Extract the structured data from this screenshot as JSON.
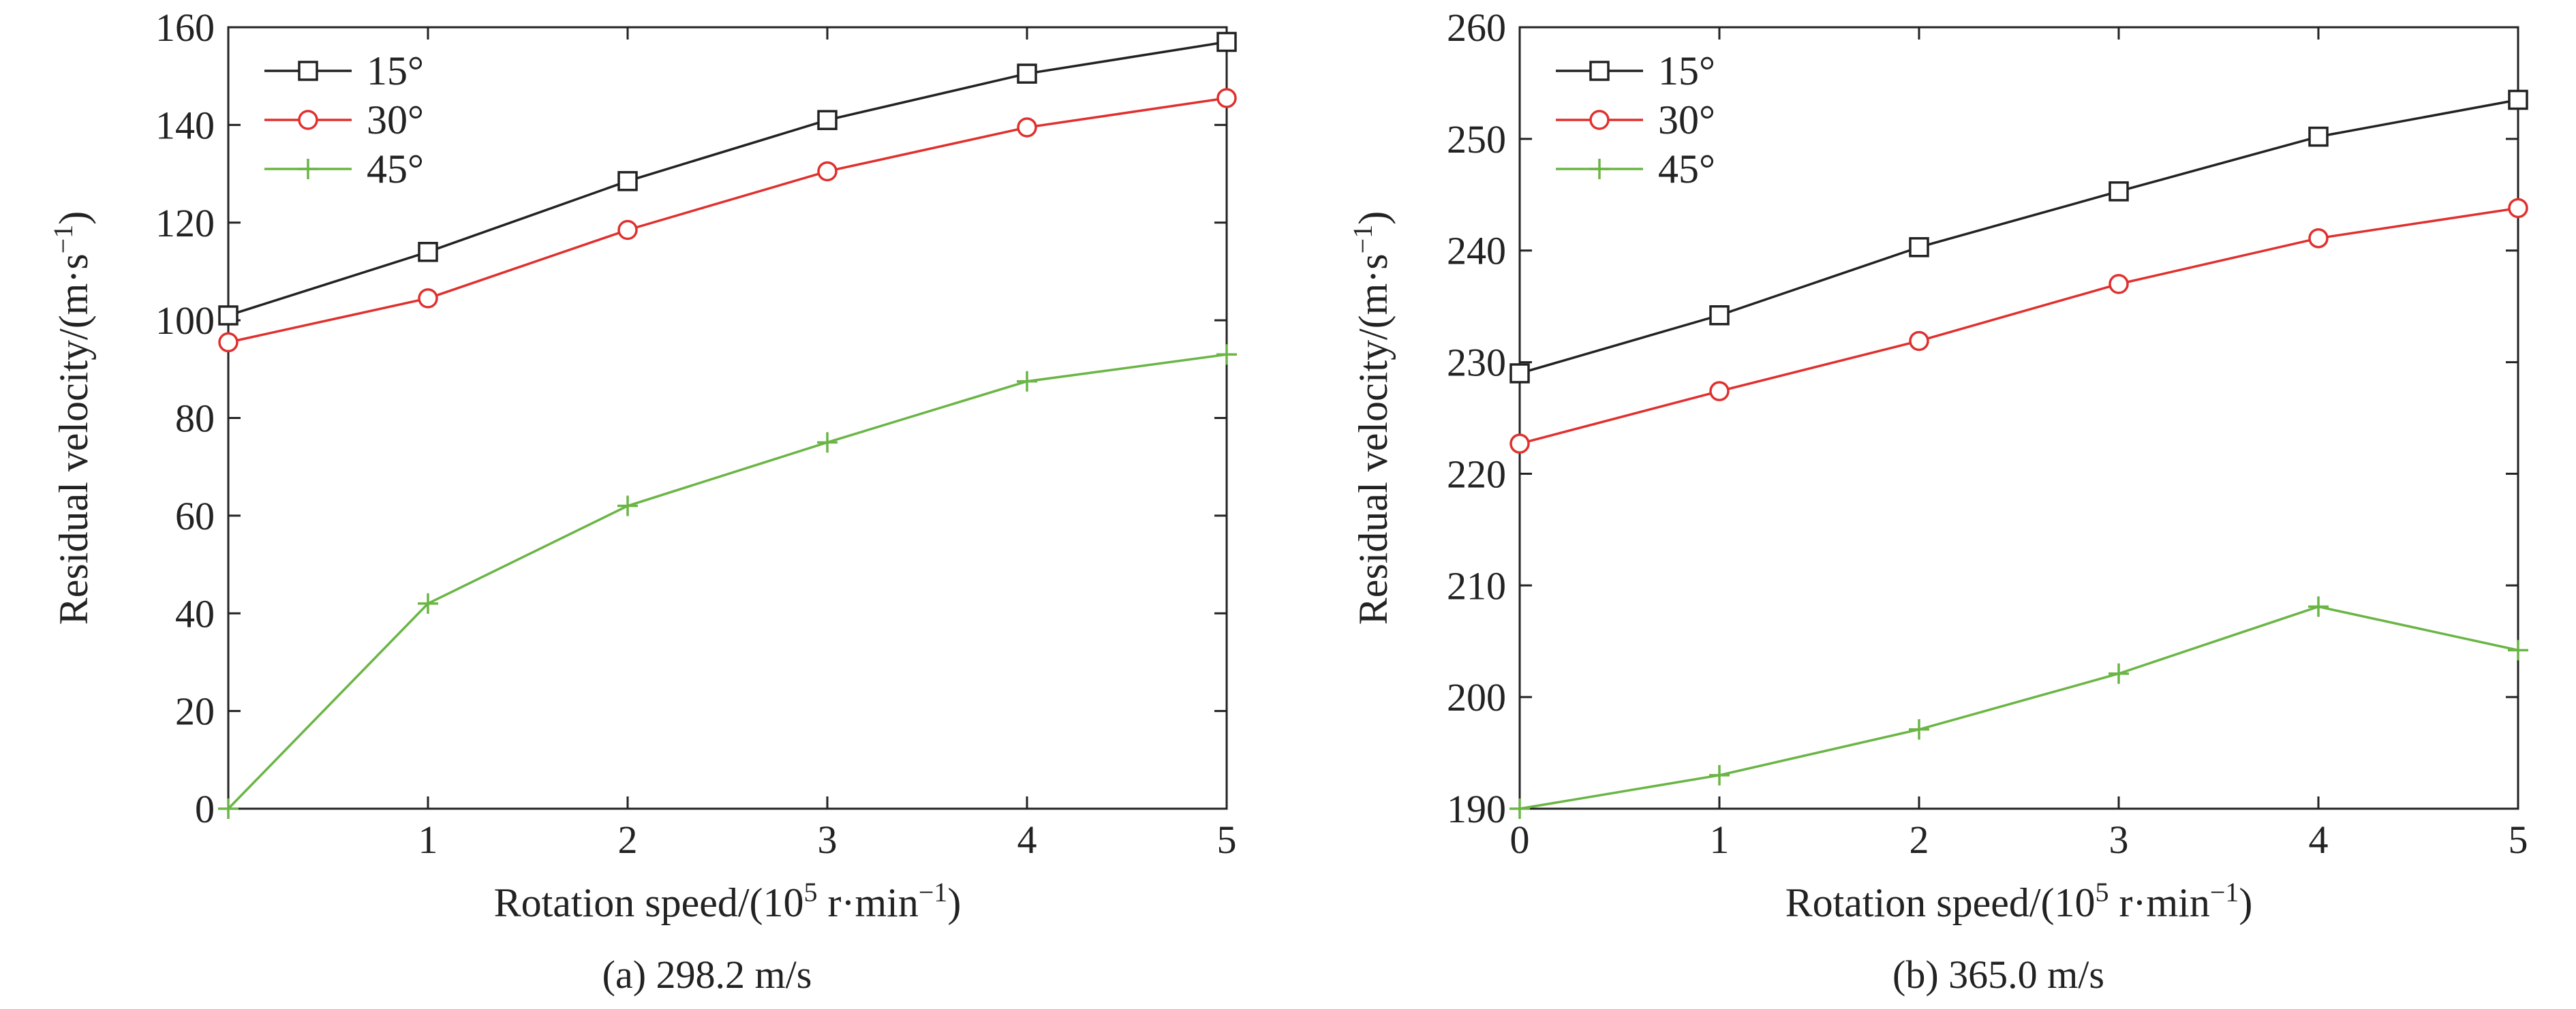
{
  "chart_data": [
    {
      "type": "line",
      "caption": "(a) 298.2 m/s",
      "xlabel": {
        "pre": "Rotation speed/(10",
        "sup1": "5",
        "mid": " r·min",
        "sup2": "−1",
        "post": ")"
      },
      "ylabel": {
        "pre": "Residual velocity/(m·s",
        "sup": "−1",
        "post": ")"
      },
      "xlim": [
        0,
        5
      ],
      "ylim": [
        0,
        160
      ],
      "xticks": [
        0,
        1,
        2,
        3,
        4,
        5
      ],
      "xtick_labels": [
        "",
        "1",
        "2",
        "3",
        "4",
        "5"
      ],
      "yticks": [
        0,
        20,
        40,
        60,
        80,
        100,
        120,
        140,
        160
      ],
      "ytick_labels": [
        "0",
        "20",
        "40",
        "60",
        "80",
        "100",
        "120",
        "140",
        "160"
      ],
      "legend_position": "top-left",
      "x": [
        0,
        1,
        2,
        3,
        4,
        5
      ],
      "series": [
        {
          "name": "15°",
          "color": "#222222",
          "marker": "square",
          "values": [
            101,
            114,
            128.5,
            141,
            150.5,
            157
          ]
        },
        {
          "name": "30°",
          "color": "#e0302e",
          "marker": "circle",
          "values": [
            95.5,
            104.5,
            118.5,
            130.5,
            139.5,
            145.5
          ]
        },
        {
          "name": "45°",
          "color": "#6ab545",
          "marker": "plus",
          "values": [
            0,
            42,
            62,
            75,
            87.5,
            93
          ]
        }
      ]
    },
    {
      "type": "line",
      "caption": "(b) 365.0 m/s",
      "xlabel": {
        "pre": "Rotation speed/(10",
        "sup1": "5",
        "mid": " r·min",
        "sup2": "−1",
        "post": ")"
      },
      "ylabel": {
        "pre": "Residual velocity/(m·s",
        "sup": "−1",
        "post": ")"
      },
      "xlim": [
        0,
        5
      ],
      "ylim": [
        190,
        260
      ],
      "xticks": [
        0,
        1,
        2,
        3,
        4,
        5
      ],
      "xtick_labels": [
        "0",
        "1",
        "2",
        "3",
        "4",
        "5"
      ],
      "yticks": [
        190,
        200,
        210,
        220,
        230,
        240,
        250,
        260
      ],
      "ytick_labels": [
        "190",
        "200",
        "210",
        "220",
        "230",
        "240",
        "250",
        "260"
      ],
      "legend_position": "top-left",
      "x": [
        0,
        1,
        2,
        3,
        4,
        5
      ],
      "series": [
        {
          "name": "15°",
          "color": "#222222",
          "marker": "square",
          "values": [
            229,
            234.2,
            240.3,
            245.3,
            250.2,
            253.5
          ]
        },
        {
          "name": "30°",
          "color": "#e0302e",
          "marker": "circle",
          "values": [
            222.7,
            227.4,
            231.9,
            237,
            241.1,
            243.8
          ]
        },
        {
          "name": "45°",
          "color": "#6ab545",
          "marker": "plus",
          "values": [
            190,
            193,
            197.1,
            202.1,
            208.1,
            204.2
          ]
        }
      ]
    }
  ]
}
